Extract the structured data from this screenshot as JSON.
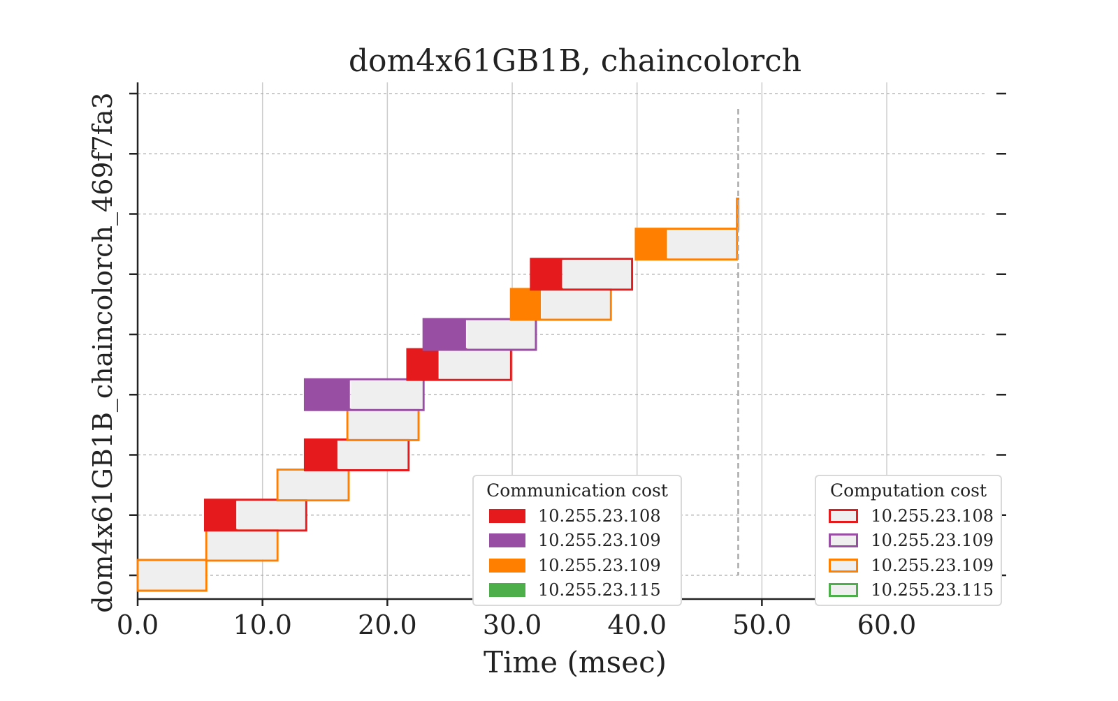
{
  "chart_data": {
    "type": "gantt",
    "title": "dom4x61GB1B, chaincolorch",
    "xlabel": "Time (msec)",
    "ylabel": "dom4x61GB1B_chaincolorch_469f7fa3",
    "xlim": [
      0,
      68
    ],
    "x_ticks": [
      0,
      10,
      20,
      30,
      40,
      50,
      60
    ],
    "x_tick_labels": [
      "0.0",
      "10.0",
      "20.0",
      "30.0",
      "40.0",
      "50.0",
      "60.0"
    ],
    "y_tick_count": 9,
    "grid": {
      "x": "solid",
      "y": "dashed"
    },
    "colors": {
      "10.255.23.108": "#e41a1c",
      "10.255.23.109_purple": "#984ea3",
      "10.255.23.109_orange": "#ff7f00",
      "10.255.23.115": "#4daf4a",
      "computation_fill": "#efefef"
    },
    "tasks": [
      {
        "row": 0,
        "comm_start": 0.0,
        "comm_end": 0.0,
        "comp_end": 5.5,
        "host_color": "#ff7f00"
      },
      {
        "row": 0.6,
        "comm_start": 5.5,
        "comm_end": 5.5,
        "comp_end": 11.2,
        "host_color": "#ff7f00"
      },
      {
        "row": 1.2,
        "comm_start": 5.4,
        "comm_end": 7.9,
        "comp_end": 13.5,
        "host_color": "#e41a1c"
      },
      {
        "row": 1.8,
        "comm_start": 11.2,
        "comm_end": 11.2,
        "comp_end": 16.9,
        "host_color": "#ff7f00"
      },
      {
        "row": 2.4,
        "comm_start": 13.4,
        "comm_end": 16.0,
        "comp_end": 21.7,
        "host_color": "#e41a1c"
      },
      {
        "row": 3.0,
        "comm_start": 16.8,
        "comm_end": 16.8,
        "comp_end": 22.5,
        "host_color": "#ff7f00"
      },
      {
        "row": 3.6,
        "comm_start": 13.4,
        "comm_end": 17.0,
        "comp_end": 22.9,
        "host_color": "#984ea3"
      },
      {
        "row": 4.2,
        "comm_start": 21.6,
        "comm_end": 24.1,
        "comp_end": 29.9,
        "host_color": "#e41a1c"
      },
      {
        "row": 4.8,
        "comm_start": 22.9,
        "comm_end": 26.3,
        "comp_end": 31.9,
        "host_color": "#984ea3"
      },
      {
        "row": 5.4,
        "comm_start": 29.9,
        "comm_end": 32.3,
        "comp_end": 37.9,
        "host_color": "#ff7f00"
      },
      {
        "row": 6.0,
        "comm_start": 31.5,
        "comm_end": 34.0,
        "comp_end": 39.6,
        "host_color": "#e41a1c"
      },
      {
        "row": 6.6,
        "comm_start": 39.9,
        "comm_end": 42.4,
        "comp_end": 48.0,
        "host_color": "#ff7f00"
      },
      {
        "row": 7.2,
        "comm_start": 48.0,
        "comm_end": 48.0,
        "comp_end": 48.1,
        "host_color": "#ff7f00"
      }
    ],
    "makespan": 48.1
  },
  "legend_comm": {
    "title": "Communication cost",
    "items": [
      {
        "label": "10.255.23.108",
        "color": "#e41a1c"
      },
      {
        "label": "10.255.23.109",
        "color": "#984ea3"
      },
      {
        "label": "10.255.23.109",
        "color": "#ff7f00"
      },
      {
        "label": "10.255.23.115",
        "color": "#4daf4a"
      }
    ]
  },
  "legend_comp": {
    "title": "Computation cost",
    "items": [
      {
        "label": "10.255.23.108",
        "color": "#e41a1c"
      },
      {
        "label": "10.255.23.109",
        "color": "#984ea3"
      },
      {
        "label": "10.255.23.109",
        "color": "#ff7f00"
      },
      {
        "label": "10.255.23.115",
        "color": "#4daf4a"
      }
    ]
  }
}
